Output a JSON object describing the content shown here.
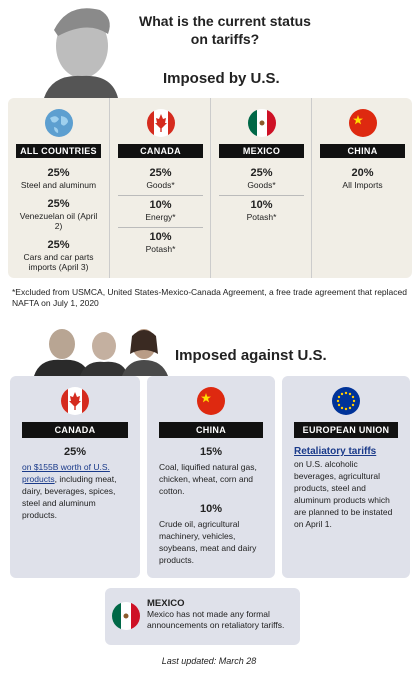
{
  "header": {
    "title": "What is the current status on tariffs?"
  },
  "imposed_by_us": {
    "heading": "Imposed by U.S.",
    "columns": [
      {
        "label": "ALL COUNTRIES",
        "items": [
          {
            "rate": "25%",
            "text": "Steel and aluminum"
          },
          {
            "rate": "25%",
            "text": "Venezuelan oil (April 2)"
          },
          {
            "rate": "25%",
            "text": "Cars and car parts imports (April 3)"
          }
        ]
      },
      {
        "label": "CANADA",
        "items": [
          {
            "rate": "25%",
            "text": "Goods*"
          },
          {
            "rate": "10%",
            "text": "Energy*"
          },
          {
            "rate": "10%",
            "text": "Potash*"
          }
        ]
      },
      {
        "label": "MEXICO",
        "items": [
          {
            "rate": "25%",
            "text": "Goods*"
          },
          {
            "rate": "10%",
            "text": "Potash*"
          }
        ]
      },
      {
        "label": "CHINA",
        "items": [
          {
            "rate": "20%",
            "text": "All Imports"
          }
        ]
      }
    ],
    "footnote": "*Excluded from USMCA, United States-Mexico-Canada Agreement, a free trade agreement that replaced NAFTA on July 1, 2020"
  },
  "imposed_against_us": {
    "heading": "Imposed against U.S.",
    "canada": {
      "label": "CANADA",
      "rate": "25%",
      "link": "on $155B worth of U.S. products",
      "text": ", including meat, dairy, beverages, spices, steel and aluminum products."
    },
    "china": {
      "label": "CHINA",
      "items": [
        {
          "rate": "15%",
          "text": "Coal, liquified natural gas, chicken, wheat, corn and cotton."
        },
        {
          "rate": "10%",
          "text": "Crude oil, agricultural machinery, vehicles, soybeans, meat and dairy products."
        }
      ]
    },
    "eu": {
      "label": "EUROPEAN UNION",
      "link": "Retaliatory tariffs",
      "text": "on U.S. alcoholic beverages, agricultural products, steel and aluminum products which are planned to be instated on April 1."
    },
    "mexico": {
      "label": "MEXICO",
      "text": "Mexico has not made any formal announcements on retaliatory tariffs."
    }
  },
  "footer": {
    "updated": "Last updated: March 28"
  }
}
